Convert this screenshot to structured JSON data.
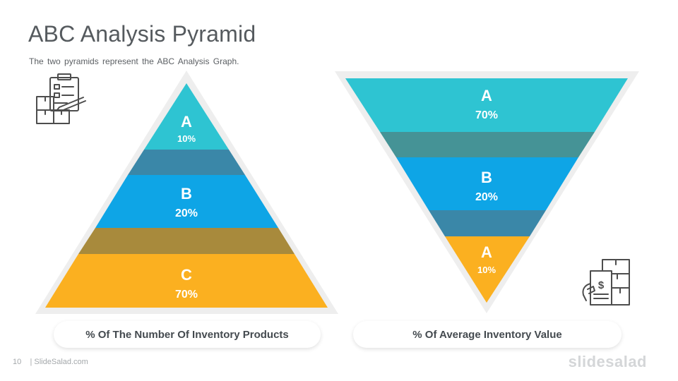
{
  "slide": {
    "title": "ABC Analysis Pyramid",
    "subtitle": "The two pyramids represent the ABC Analysis Graph.",
    "page_number": "10",
    "footer_text": "| SlideSalad.com",
    "brand": "slidesalad"
  },
  "left_pyramid": {
    "caption": "% Of The Number Of Inventory Products",
    "tiers": [
      {
        "letter": "A",
        "percent": "10%",
        "color": "#2ec4d2"
      },
      {
        "letter": "B",
        "percent": "20%",
        "color": "#0ea5e6"
      },
      {
        "letter": "C",
        "percent": "70%",
        "color": "#fbb020"
      }
    ],
    "connector_colors": [
      "#3a87a8",
      "#a88a3c"
    ],
    "icon": "clipboard-boxes-icon"
  },
  "right_pyramid": {
    "caption": "% Of Average Inventory Value",
    "tiers": [
      {
        "letter": "A",
        "percent": "70%",
        "color": "#2ec4d2"
      },
      {
        "letter": "B",
        "percent": "20%",
        "color": "#0ea5e6"
      },
      {
        "letter": "A",
        "percent": "10%",
        "color": "#fbb020"
      }
    ],
    "connector_colors": [
      "#459396",
      "#3a87a8"
    ],
    "icon": "invoice-boxes-icon"
  }
}
